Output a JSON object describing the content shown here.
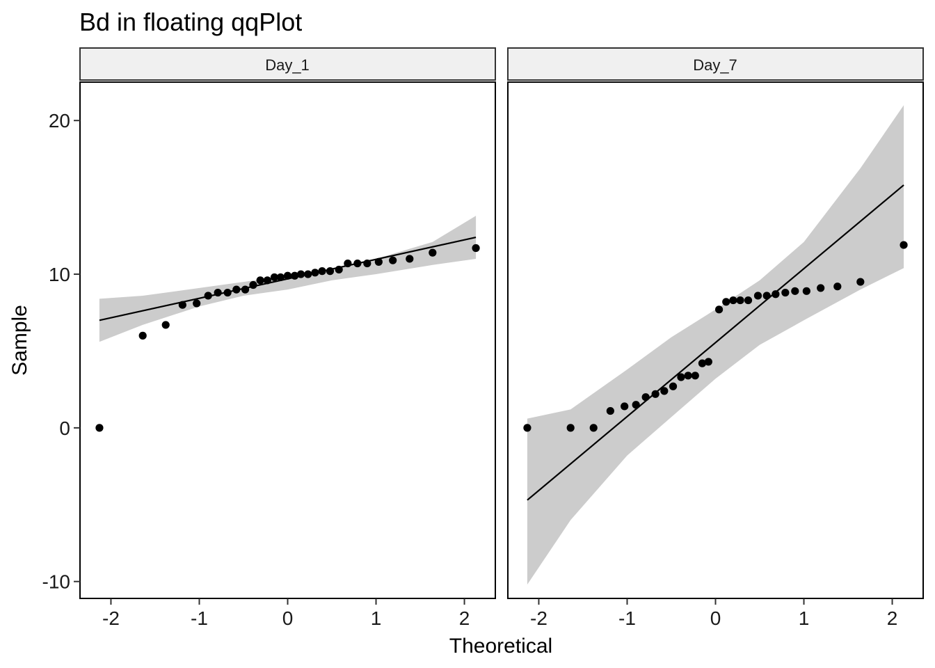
{
  "chart_data": {
    "type": "scatter",
    "title": "Bd in floating  qqPlot",
    "xlabel": "Theoretical",
    "ylabel": "Sample",
    "xlim": [
      -2.35,
      2.35
    ],
    "ylim": [
      -11.1,
      22.5
    ],
    "xticks": [
      -2,
      -1,
      0,
      1,
      2
    ],
    "yticks": [
      -10,
      0,
      10,
      20
    ],
    "grid": false,
    "colors": {
      "points": "#000000",
      "band": "#cccccc",
      "line": "#000000",
      "strip_bg": "#f0f0f0"
    },
    "panels": [
      {
        "strip": "Day_1",
        "x": [
          -2.13,
          -1.64,
          -1.38,
          -1.19,
          -1.03,
          -0.9,
          -0.79,
          -0.68,
          -0.58,
          -0.48,
          -0.39,
          -0.31,
          -0.23,
          -0.15,
          -0.08,
          0,
          0.08,
          0.15,
          0.23,
          0.31,
          0.39,
          0.48,
          0.58,
          0.68,
          0.79,
          0.9,
          1.03,
          1.19,
          1.38,
          1.64,
          2.13
        ],
        "y": [
          0,
          6,
          6.7,
          8,
          8.1,
          8.6,
          8.8,
          8.8,
          9,
          9,
          9.3,
          9.6,
          9.6,
          9.8,
          9.8,
          9.9,
          9.9,
          10,
          10,
          10.1,
          10.2,
          10.2,
          10.3,
          10.7,
          10.7,
          10.7,
          10.8,
          10.9,
          11,
          11.4,
          11.7
        ],
        "line": {
          "x": [
            -2.13,
            2.13
          ],
          "y": [
            7.0,
            12.4
          ]
        },
        "band": {
          "x": [
            -2.13,
            -1.64,
            -1.0,
            -0.5,
            0,
            0.5,
            1.0,
            1.64,
            2.13
          ],
          "upper": [
            8.4,
            8.6,
            9.1,
            9.5,
            9.9,
            10.3,
            11.0,
            12.1,
            13.8
          ],
          "lower": [
            5.6,
            6.7,
            7.9,
            8.6,
            9.0,
            9.6,
            10.0,
            10.6,
            11.0
          ]
        }
      },
      {
        "strip": "Day_7",
        "x": [
          -2.13,
          -1.64,
          -1.38,
          -1.19,
          -1.03,
          -0.9,
          -0.79,
          -0.68,
          -0.58,
          -0.48,
          -0.39,
          -0.31,
          -0.23,
          -0.15,
          -0.08,
          0.04,
          0.12,
          0.2,
          0.28,
          0.37,
          0.48,
          0.58,
          0.68,
          0.79,
          0.9,
          1.03,
          1.19,
          1.38,
          1.64,
          2.13
        ],
        "y": [
          0,
          0,
          0,
          1.1,
          1.4,
          1.5,
          2,
          2.2,
          2.4,
          2.7,
          3.3,
          3.4,
          3.4,
          4.2,
          4.3,
          7.7,
          8.2,
          8.3,
          8.3,
          8.3,
          8.6,
          8.6,
          8.7,
          8.8,
          8.9,
          8.9,
          9.1,
          9.2,
          9.5,
          11.9
        ],
        "line": {
          "x": [
            -2.13,
            2.13
          ],
          "y": [
            -4.7,
            15.8
          ]
        },
        "band": {
          "x": [
            -2.13,
            -1.64,
            -1.0,
            -0.5,
            0,
            0.5,
            1.0,
            1.64,
            2.13
          ],
          "upper": [
            0.6,
            1.2,
            3.8,
            5.9,
            7.7,
            9.6,
            12.1,
            16.9,
            21.0
          ],
          "lower": [
            -10.2,
            -6.0,
            -1.8,
            0.7,
            3.2,
            5.4,
            7.0,
            9.0,
            10.4
          ]
        }
      }
    ]
  }
}
